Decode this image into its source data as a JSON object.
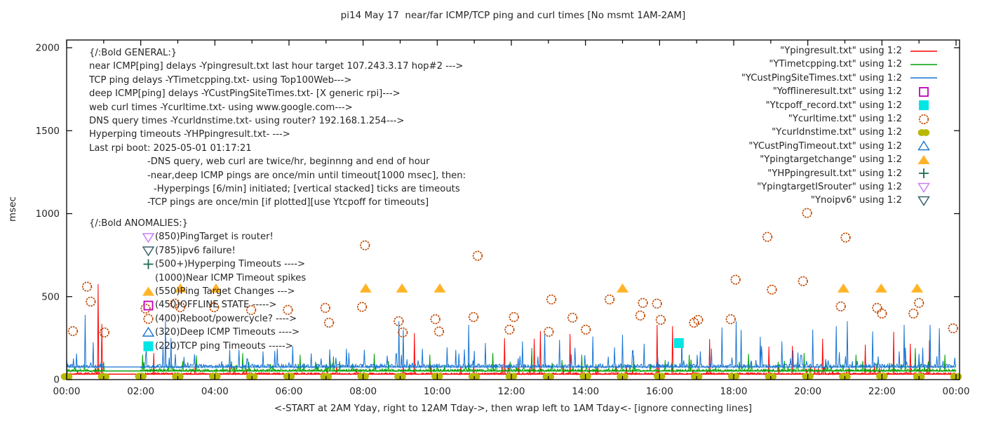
{
  "title": "pi14 May 17  near/far ICMP/TCP ping and curl times [No msmt 1AM-2AM]",
  "ylabel": "msec",
  "xlabel": "<-START at 2AM Yday, right to 12AM Tday->, then wrap left to 1AM Tday<- [ignore connecting lines]",
  "colors": {
    "red": "#ff0000",
    "green": "#00a000",
    "blue": "#1874d2",
    "dark_orange": "#c04800",
    "olive": "#b8b800",
    "magenta": "#bf00bf",
    "cyan": "#00e5e5",
    "orange_triangle": "#ffb428",
    "dark_green": "#1a6b4a",
    "violet": "#c97ff0",
    "steel": "#39626e",
    "text": "#262626",
    "border": "#000000"
  },
  "general_block": {
    "lines": [
      {
        "indent": 0,
        "text": "{/:Bold GENERAL:}"
      },
      {
        "indent": 0,
        "text": "near ICMP[ping] delays -Ypingresult.txt last hour target 107.243.3.17 hop#2 --->"
      },
      {
        "indent": 0,
        "text": "TCP ping delays -YTimetcpping.txt- using Top100Web--->"
      },
      {
        "indent": 0,
        "text": "deep ICMP[ping] delays -YCustPingSiteTimes.txt- [X generic rpi]--->"
      },
      {
        "indent": 0,
        "text": "web curl times -Ycurltime.txt- using www.google.com--->"
      },
      {
        "indent": 0,
        "text": "DNS query times -Ycurldnstime.txt- using router? 192.168.1.254--->"
      },
      {
        "indent": 0,
        "text": "Hyperping timeouts -YHPpingresult.txt- --->"
      },
      {
        "indent": 0,
        "text": "Last rpi boot: 2025-05-01 01:17:21"
      },
      {
        "indent": 83,
        "text": "-DNS query, web curl are twice/hr, beginnng and end of hour"
      },
      {
        "indent": 83,
        "text": "-near,deep ICMP pings are once/min until timeout[1000 msec], then:"
      },
      {
        "indent": 92,
        "text": "-Hyperpings [6/min] initiated; [vertical stacked] ticks are timeouts"
      },
      {
        "indent": 83,
        "text": "-TCP pings are once/min [if plotted][use Ytcpoff for timeouts]"
      }
    ]
  },
  "anomalies_block": {
    "heading": "{/:Bold ANOMALIES:}",
    "lines": [
      {
        "marker": "tri-down-violet",
        "text": "(850)PingTarget is router!"
      },
      {
        "marker": "tri-down-steel",
        "text": "(785)ipv6 failure!"
      },
      {
        "marker": "plus-green",
        "text": "(500+)Hyperping Timeouts ---->"
      },
      {
        "marker": null,
        "text": "(1000)Near ICMP Timeout spikes"
      },
      {
        "marker": "tri-up-orange",
        "text": "(550)Ping Target Changes --->"
      },
      {
        "marker": "square-open-magenta",
        "text": "(450)OFFLINE STATE ----->"
      },
      {
        "marker": "circle-open-orange",
        "text": "(400)Reboot/powercycle? ---->"
      },
      {
        "marker": "tri-up-open-blue",
        "text": "(320)Deep ICMP Timeouts ---->"
      },
      {
        "marker": "square-cyan",
        "text": "(220)TCP ping Timeouts ----->"
      }
    ]
  },
  "legend": [
    {
      "label": "\"Ypingresult.txt\" using 1:2",
      "marker": "line-red"
    },
    {
      "label": "\"YTimetcpping.txt\" using 1:2",
      "marker": "line-green"
    },
    {
      "label": "\"YCustPingSiteTimes.txt\" using 1:2",
      "marker": "line-blue"
    },
    {
      "label": "\"Yofflineresult.txt\" using 1:2",
      "marker": "square-open-magenta"
    },
    {
      "label": "\"Ytcpoff_record.txt\" using 1:2",
      "marker": "square-cyan"
    },
    {
      "label": "\"Ycurltime.txt\" using 1:2",
      "marker": "circle-open-orange"
    },
    {
      "label": "\"Ycurldnstime.txt\" using 1:2",
      "marker": "circle-olive"
    },
    {
      "label": "\"YCustPingTimeout.txt\" using 1:2",
      "marker": "tri-up-open-blue"
    },
    {
      "label": "\"Ypingtargetchange\" using 1:2",
      "marker": "tri-up-orange"
    },
    {
      "label": "\"YHPpingresult.txt\" using 1:2",
      "marker": "plus-green"
    },
    {
      "label": "\"YpingtargetISrouter\" using 1:2",
      "marker": "tri-down-violet"
    },
    {
      "label": "\"Ynoipv6\" using 1:2",
      "marker": "tri-down-steel"
    }
  ],
  "chart_data": {
    "type": "line",
    "title": "pi14 May 17  near/far ICMP/TCP ping and curl times [No msmt 1AM-2AM]",
    "xlabel": "<-START at 2AM Yday, right to 12AM Tday->, then wrap left to 1AM Tday<- [ignore connecting lines]",
    "ylabel": "msec",
    "x_range_hours": [
      0,
      24
    ],
    "ylim": [
      0,
      2000
    ],
    "y_ticks": [
      0,
      500,
      1000,
      1500,
      2000
    ],
    "x_tick_labels": [
      "00:00",
      "02:00",
      "04:00",
      "06:00",
      "08:00",
      "10:00",
      "12:00",
      "14:00",
      "16:00",
      "18:00",
      "20:00",
      "22:00",
      "00:00"
    ],
    "x_minor_tick_every_hours": 1,
    "grid": false,
    "legend_position": "top-right",
    "no_measurement_gap_hours": [
      1.0,
      2.0
    ],
    "noise_seed": 7,
    "series": [
      {
        "name": "Ypingresult.txt",
        "type": "noisy-line",
        "color": "red",
        "baseline": 33,
        "noise_amp": 9,
        "bump_chance": 0.05,
        "bump_max": 55,
        "spikes": [
          [
            0.85,
            575
          ],
          [
            0.95,
            335
          ],
          [
            2.35,
            160
          ],
          [
            9.39,
            280
          ],
          [
            11.82,
            250
          ],
          [
            12.62,
            246
          ],
          [
            12.78,
            292
          ],
          [
            13.58,
            275
          ],
          [
            15.93,
            330
          ],
          [
            16.35,
            322
          ],
          [
            17.35,
            245
          ],
          [
            18.95,
            199
          ],
          [
            19.58,
            203
          ],
          [
            20.4,
            246
          ],
          [
            21.55,
            210
          ],
          [
            22.31,
            288
          ],
          [
            22.77,
            216
          ],
          [
            23.29,
            237
          ]
        ]
      },
      {
        "name": "YTimetcpping.txt",
        "type": "noisy-line",
        "color": "green",
        "baseline": 52,
        "noise_amp": 12,
        "bump_chance": 0.06,
        "bump_max": 60,
        "spikes": [
          [
            2.05,
            150
          ],
          [
            3.5,
            145
          ],
          [
            4.75,
            160
          ],
          [
            6.3,
            150
          ],
          [
            7.2,
            140
          ],
          [
            8.3,
            155
          ],
          [
            9.8,
            150
          ],
          [
            11.5,
            160
          ],
          [
            12.55,
            190
          ],
          [
            13.9,
            150
          ],
          [
            15.3,
            145
          ],
          [
            16.8,
            150
          ],
          [
            18.4,
            155
          ],
          [
            19.9,
            160
          ],
          [
            21.3,
            150
          ],
          [
            22.9,
            190
          ],
          [
            23.7,
            150
          ]
        ]
      },
      {
        "name": "YCustPingSiteTimes.txt",
        "type": "noisy-line",
        "color": "blue",
        "baseline": 76,
        "noise_amp": 18,
        "bump_chance": 0.09,
        "bump_max": 110,
        "spikes": [
          [
            0.5,
            390
          ],
          [
            0.72,
            225
          ],
          [
            2.66,
            352
          ],
          [
            2.82,
            250
          ],
          [
            4.4,
            180
          ],
          [
            5.3,
            170
          ],
          [
            6.1,
            200
          ],
          [
            7.55,
            185
          ],
          [
            8.96,
            352
          ],
          [
            9.08,
            301
          ],
          [
            9.6,
            186
          ],
          [
            10.85,
            330
          ],
          [
            11.3,
            220
          ],
          [
            12.3,
            230
          ],
          [
            12.9,
            280
          ],
          [
            13.3,
            240
          ],
          [
            14.2,
            260
          ],
          [
            15.0,
            270
          ],
          [
            15.58,
            216
          ],
          [
            16.6,
            250
          ],
          [
            17.69,
            314
          ],
          [
            18.07,
            352
          ],
          [
            18.2,
            300
          ],
          [
            18.71,
            258
          ],
          [
            19.3,
            230
          ],
          [
            20.14,
            301
          ],
          [
            20.76,
            322
          ],
          [
            21.06,
            352
          ],
          [
            21.75,
            290
          ],
          [
            22.6,
            330
          ],
          [
            23.3,
            330
          ],
          [
            23.55,
            310
          ]
        ]
      },
      {
        "name": "Yofflineresult.txt",
        "type": "points",
        "marker": "square-open-magenta",
        "points": []
      },
      {
        "name": "Ytcpoff_record.txt",
        "type": "points",
        "marker": "square-cyan",
        "points": [
          [
            16.52,
            220
          ]
        ]
      },
      {
        "name": "Ycurltime.txt",
        "type": "points",
        "marker": "circle-open-orange",
        "points": [
          [
            0.17,
            292
          ],
          [
            0.55,
            560
          ],
          [
            0.65,
            470
          ],
          [
            1.02,
            284
          ],
          [
            2.13,
            428
          ],
          [
            2.92,
            458
          ],
          [
            3.07,
            436
          ],
          [
            3.98,
            436
          ],
          [
            4.98,
            419
          ],
          [
            5.97,
            420
          ],
          [
            6.98,
            432
          ],
          [
            7.08,
            343
          ],
          [
            7.97,
            438
          ],
          [
            8.05,
            809
          ],
          [
            8.96,
            352
          ],
          [
            9.07,
            284
          ],
          [
            9.95,
            364
          ],
          [
            10.05,
            290
          ],
          [
            10.98,
            377
          ],
          [
            11.09,
            746
          ],
          [
            11.95,
            301
          ],
          [
            12.07,
            377
          ],
          [
            13.01,
            288
          ],
          [
            13.08,
            483
          ],
          [
            13.65,
            373
          ],
          [
            14.01,
            301
          ],
          [
            14.65,
            483
          ],
          [
            15.48,
            386
          ],
          [
            15.55,
            462
          ],
          [
            15.93,
            458
          ],
          [
            16.03,
            360
          ],
          [
            16.93,
            343
          ],
          [
            17.04,
            360
          ],
          [
            17.92,
            364
          ],
          [
            18.05,
            602
          ],
          [
            18.91,
            860
          ],
          [
            19.03,
            542
          ],
          [
            19.87,
            593
          ],
          [
            19.98,
            1004
          ],
          [
            20.89,
            441
          ],
          [
            21.02,
            856
          ],
          [
            21.87,
            432
          ],
          [
            22.0,
            398
          ],
          [
            22.85,
            398
          ],
          [
            23.0,
            462
          ],
          [
            23.92,
            309
          ]
        ]
      },
      {
        "name": "Ycurldnstime.txt",
        "type": "points",
        "marker": "circle-olive",
        "points": [
          [
            0,
            18
          ],
          [
            1,
            18
          ],
          [
            2,
            20
          ],
          [
            3,
            18
          ],
          [
            4,
            20
          ],
          [
            5,
            18
          ],
          [
            6,
            20
          ],
          [
            7,
            18
          ],
          [
            8,
            20
          ],
          [
            9,
            18
          ],
          [
            10,
            20
          ],
          [
            11,
            18
          ],
          [
            12,
            20
          ],
          [
            13,
            18
          ],
          [
            14,
            20
          ],
          [
            15,
            18
          ],
          [
            16,
            20
          ],
          [
            17,
            18
          ],
          [
            18,
            20
          ],
          [
            19,
            18
          ],
          [
            20,
            20
          ],
          [
            21,
            18
          ],
          [
            22,
            20
          ],
          [
            23,
            18
          ],
          [
            24,
            18
          ]
        ]
      },
      {
        "name": "YCustPingTimeout.txt",
        "type": "points",
        "marker": "tri-up-open-blue",
        "points": []
      },
      {
        "name": "Ypingtargetchange",
        "type": "points",
        "marker": "tri-up-orange",
        "points": [
          [
            3.07,
            550
          ],
          [
            4.03,
            550
          ],
          [
            8.07,
            550
          ],
          [
            9.05,
            550
          ],
          [
            10.07,
            550
          ],
          [
            15.0,
            550
          ],
          [
            20.96,
            550
          ],
          [
            21.98,
            550
          ],
          [
            22.95,
            550
          ]
        ]
      },
      {
        "name": "YHPpingresult.txt",
        "type": "points",
        "marker": "plus-green",
        "points": []
      },
      {
        "name": "YpingtargetISrouter",
        "type": "points",
        "marker": "tri-down-violet",
        "points": []
      },
      {
        "name": "Ynoipv6",
        "type": "points",
        "marker": "tri-down-steel",
        "points": []
      }
    ]
  }
}
